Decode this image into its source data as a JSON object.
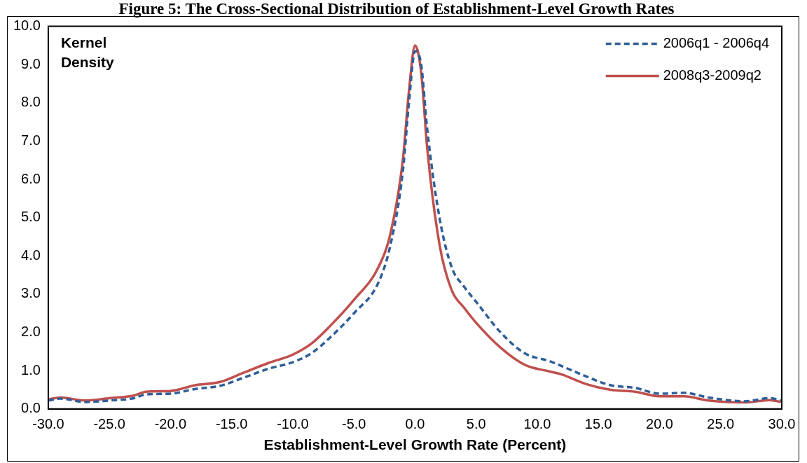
{
  "chart_data": {
    "type": "line",
    "title": "Figure 5: The Cross-Sectional Distribution of Establishment-Level Growth Rates",
    "xlabel": "Establishment-Level Growth Rate (Percent)",
    "ylabel": "Kernel Density",
    "xlim": [
      -30,
      30
    ],
    "xticks": [
      {
        "value": -30,
        "label": "-30.0"
      },
      {
        "value": -25,
        "label": "-25.0"
      },
      {
        "value": -20,
        "label": "-20.0"
      },
      {
        "value": -15,
        "label": "-15.0"
      },
      {
        "value": -10,
        "label": "-10.0"
      },
      {
        "value": -5,
        "label": "-5.0"
      },
      {
        "value": 0,
        "label": "0.0"
      },
      {
        "value": 5,
        "label": "5.0"
      },
      {
        "value": 10,
        "label": "10.0"
      },
      {
        "value": 15,
        "label": "15.0"
      },
      {
        "value": 20,
        "label": "20.0"
      },
      {
        "value": 25,
        "label": "25.0"
      },
      {
        "value": 30,
        "label": "30.0"
      }
    ],
    "ylim": [
      0,
      10
    ],
    "yticks": [
      {
        "value": 0,
        "label": "0.0"
      },
      {
        "value": 1,
        "label": "1.0"
      },
      {
        "value": 2,
        "label": "2.0"
      },
      {
        "value": 3,
        "label": "3.0"
      },
      {
        "value": 4,
        "label": "4.0"
      },
      {
        "value": 5,
        "label": "5.0"
      },
      {
        "value": 6,
        "label": "6.0"
      },
      {
        "value": 7,
        "label": "7.0"
      },
      {
        "value": 8,
        "label": "8.0"
      },
      {
        "value": 9,
        "label": "9.0"
      },
      {
        "value": 10,
        "label": "10.0"
      }
    ],
    "x": [
      -30,
      -29,
      -27,
      -25,
      -23,
      -22,
      -20,
      -18,
      -16,
      -14,
      -12,
      -10,
      -8.5,
      -7,
      -5,
      -3,
      -2,
      -1,
      -0.5,
      0,
      0.5,
      1,
      2,
      3,
      4,
      5,
      7,
      9,
      11,
      12,
      14,
      16,
      18,
      20,
      22,
      24,
      27,
      29,
      30
    ],
    "series": [
      {
        "name": "2006q1 - 2006q4",
        "color": "#2f5f98",
        "line_style": "dashed",
        "values": [
          0.22,
          0.27,
          0.18,
          0.22,
          0.28,
          0.38,
          0.4,
          0.52,
          0.6,
          0.82,
          1.05,
          1.22,
          1.45,
          1.85,
          2.5,
          3.3,
          4.3,
          6.2,
          8.0,
          9.35,
          9.0,
          7.3,
          5.0,
          3.7,
          3.2,
          2.8,
          2.0,
          1.45,
          1.25,
          1.12,
          0.85,
          0.62,
          0.55,
          0.4,
          0.42,
          0.3,
          0.2,
          0.28,
          0.22
        ]
      },
      {
        "name": "2008q3-2009q2",
        "color": "#c0504d",
        "line_style": "solid",
        "values": [
          0.25,
          0.3,
          0.22,
          0.28,
          0.35,
          0.45,
          0.47,
          0.62,
          0.7,
          0.95,
          1.2,
          1.42,
          1.7,
          2.15,
          2.85,
          3.7,
          4.6,
          6.5,
          8.3,
          9.5,
          8.8,
          6.8,
          4.3,
          3.1,
          2.65,
          2.25,
          1.6,
          1.15,
          0.98,
          0.9,
          0.65,
          0.5,
          0.45,
          0.33,
          0.33,
          0.22,
          0.17,
          0.23,
          0.18
        ]
      }
    ],
    "legend": "top right",
    "grid": false,
    "marker": "none"
  }
}
